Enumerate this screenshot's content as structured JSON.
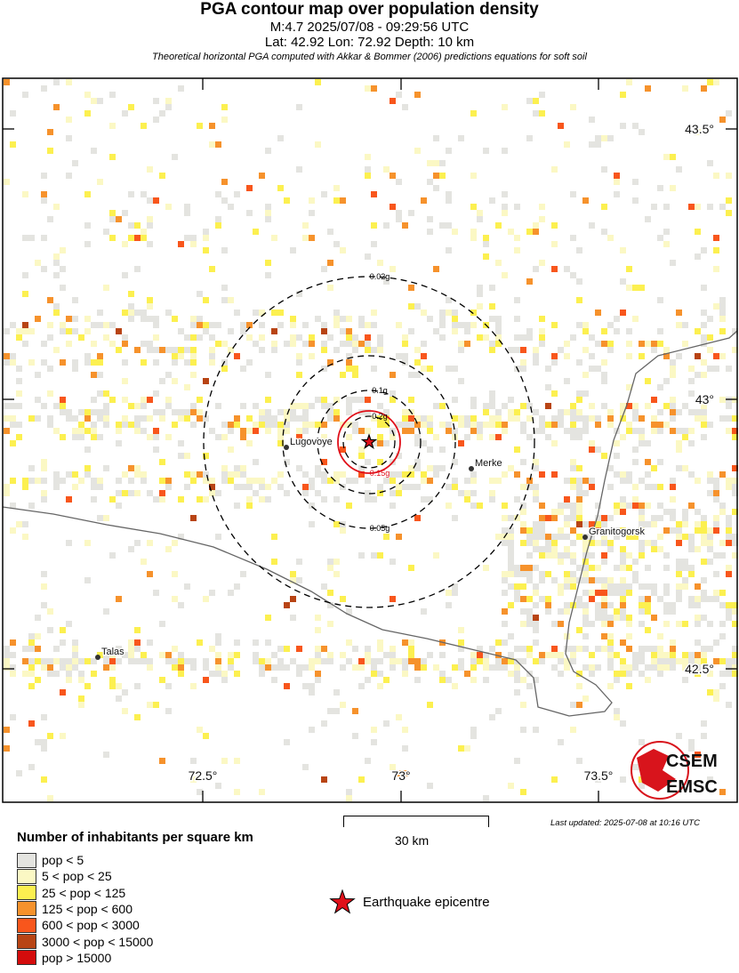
{
  "header": {
    "title": "PGA contour map over population density",
    "event": "M:4.7 2025/07/08 - 09:29:56 UTC",
    "location": "Lat: 42.92 Lon: 72.92 Depth: 10 km",
    "note": "Theoretical horizontal PGA computed with Akkar & Bommer (2006) predictions equations for soft soil"
  },
  "map": {
    "lat_ticks": [
      "43.5°",
      "43°",
      "42.5°"
    ],
    "lon_ticks": [
      "72.5°",
      "73°",
      "73.5°"
    ],
    "epicentre": {
      "lat": 42.92,
      "lon": 72.92
    },
    "contours": [
      {
        "label": "0.02g",
        "color": "#000000",
        "style": "dashed"
      },
      {
        "label": "0.05g",
        "color": "#000000",
        "style": "dashed"
      },
      {
        "label": "0.1g",
        "color": "#000000",
        "style": "dashed"
      },
      {
        "label": "0.15g",
        "color": "#e0101a",
        "style": "solid"
      },
      {
        "label": "0.2g",
        "color": "#000000",
        "style": "dashed"
      }
    ],
    "cities": [
      "Lugovoye",
      "Merke",
      "Granitogorsk",
      "Talas"
    ],
    "logo": {
      "text1": "CSEM",
      "text2": "EMSC",
      "color": "#d8141c"
    }
  },
  "scale": {
    "label": "30 km"
  },
  "updated": "Last updated: 2025-07-08 at 10:16 UTC",
  "legend": {
    "title": "Number of inhabitants per square km",
    "items": [
      {
        "label": "pop < 5",
        "color": "#e4e4e0"
      },
      {
        "label": "5 < pop < 25",
        "color": "#fbf8c4"
      },
      {
        "label": "25 < pop < 125",
        "color": "#fcf050"
      },
      {
        "label": "125 < pop < 600",
        "color": "#f6922c"
      },
      {
        "label": "600 < pop < 3000",
        "color": "#f8561c"
      },
      {
        "label": "3000 < pop < 15000",
        "color": "#b84414"
      },
      {
        "label": "pop > 15000",
        "color": "#d40c0c"
      }
    ],
    "epicentre_label": "Earthquake epicentre"
  }
}
